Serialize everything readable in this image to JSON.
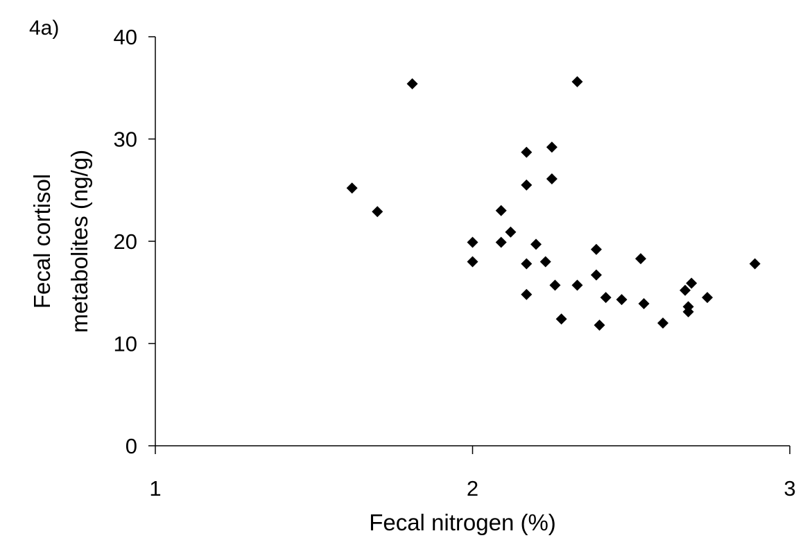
{
  "panel_label": "4a)",
  "chart_data": {
    "type": "scatter",
    "xlabel": "Fecal nitrogen (%)",
    "ylabel_line1": "Fecal cortisol",
    "ylabel_line2": "metabolites (ng/g)",
    "xlim": [
      1,
      3
    ],
    "ylim": [
      0,
      40
    ],
    "xticks": [
      "1",
      "2",
      "3"
    ],
    "yticks": [
      "0",
      "10",
      "20",
      "30",
      "40"
    ],
    "xtick_values": [
      1,
      2,
      3
    ],
    "ytick_values": [
      0,
      10,
      20,
      30,
      40
    ],
    "marker": "diamond",
    "color": "#000000",
    "points": [
      {
        "x": 1.62,
        "y": 25.2
      },
      {
        "x": 1.7,
        "y": 22.9
      },
      {
        "x": 1.81,
        "y": 35.4
      },
      {
        "x": 2.0,
        "y": 19.9
      },
      {
        "x": 2.0,
        "y": 18.0
      },
      {
        "x": 2.09,
        "y": 23.0
      },
      {
        "x": 2.09,
        "y": 19.9
      },
      {
        "x": 2.12,
        "y": 20.9
      },
      {
        "x": 2.17,
        "y": 28.7
      },
      {
        "x": 2.17,
        "y": 25.5
      },
      {
        "x": 2.17,
        "y": 17.8
      },
      {
        "x": 2.17,
        "y": 14.8
      },
      {
        "x": 2.2,
        "y": 19.7
      },
      {
        "x": 2.23,
        "y": 18.0
      },
      {
        "x": 2.25,
        "y": 29.2
      },
      {
        "x": 2.25,
        "y": 26.1
      },
      {
        "x": 2.26,
        "y": 15.7
      },
      {
        "x": 2.28,
        "y": 12.4
      },
      {
        "x": 2.33,
        "y": 35.6
      },
      {
        "x": 2.33,
        "y": 15.7
      },
      {
        "x": 2.39,
        "y": 19.2
      },
      {
        "x": 2.39,
        "y": 16.7
      },
      {
        "x": 2.4,
        "y": 11.8
      },
      {
        "x": 2.42,
        "y": 14.5
      },
      {
        "x": 2.47,
        "y": 14.3
      },
      {
        "x": 2.53,
        "y": 18.3
      },
      {
        "x": 2.54,
        "y": 13.9
      },
      {
        "x": 2.6,
        "y": 12.0
      },
      {
        "x": 2.67,
        "y": 15.2
      },
      {
        "x": 2.68,
        "y": 13.6
      },
      {
        "x": 2.68,
        "y": 13.1
      },
      {
        "x": 2.69,
        "y": 15.9
      },
      {
        "x": 2.74,
        "y": 14.5
      },
      {
        "x": 2.89,
        "y": 17.8
      }
    ]
  }
}
